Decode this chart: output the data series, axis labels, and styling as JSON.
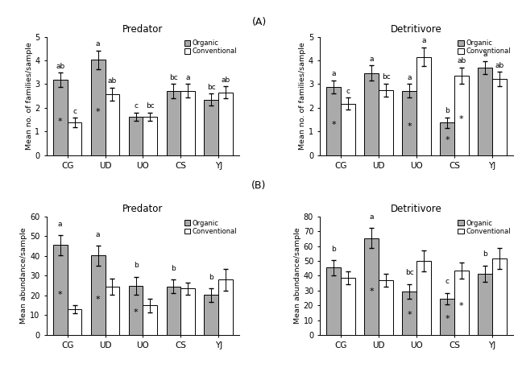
{
  "categories": [
    "CG",
    "UD",
    "UO",
    "CS",
    "YJ"
  ],
  "A_pred_organic": [
    3.18,
    4.02,
    1.62,
    2.7,
    2.35
  ],
  "A_pred_conv": [
    1.37,
    2.58,
    1.62,
    2.72,
    2.65
  ],
  "A_pred_org_err": [
    0.3,
    0.4,
    0.18,
    0.3,
    0.25
  ],
  "A_pred_conv_err": [
    0.2,
    0.28,
    0.18,
    0.28,
    0.25
  ],
  "A_pred_org_letter": [
    "ab",
    "a",
    "c",
    "bc",
    "bc"
  ],
  "A_pred_conv_letter": [
    "c",
    "ab",
    "bc",
    "a",
    "ab"
  ],
  "A_pred_org_star": [
    true,
    true,
    false,
    false,
    false
  ],
  "A_pred_conv_star": [
    false,
    false,
    false,
    false,
    false
  ],
  "A_det_organic": [
    2.88,
    3.47,
    2.72,
    1.37,
    3.7
  ],
  "A_det_conv": [
    2.18,
    2.75,
    4.15,
    3.35,
    3.22
  ],
  "A_det_org_err": [
    0.28,
    0.32,
    0.28,
    0.22,
    0.28
  ],
  "A_det_conv_err": [
    0.25,
    0.28,
    0.4,
    0.35,
    0.3
  ],
  "A_det_org_letter": [
    "a",
    "a",
    "a",
    "b",
    "a"
  ],
  "A_det_conv_letter": [
    "c",
    "bc",
    "a",
    "ab",
    "ab"
  ],
  "A_det_org_star": [
    true,
    false,
    true,
    true,
    false
  ],
  "A_det_conv_star": [
    false,
    false,
    false,
    true,
    false
  ],
  "B_pred_organic": [
    45.5,
    40.2,
    25.0,
    24.5,
    20.2
  ],
  "B_pred_conv": [
    13.0,
    24.5,
    15.0,
    23.5,
    28.0
  ],
  "B_pred_org_err": [
    5.0,
    5.0,
    4.5,
    3.5,
    3.5
  ],
  "B_pred_conv_err": [
    2.0,
    4.0,
    3.5,
    3.0,
    5.5
  ],
  "B_pred_org_letter": [
    "a",
    "a",
    "b",
    "b",
    "b"
  ],
  "B_pred_conv_letter": [
    "",
    "",
    "",
    "",
    ""
  ],
  "B_pred_org_star": [
    true,
    true,
    true,
    false,
    false
  ],
  "B_pred_conv_star": [
    false,
    false,
    false,
    false,
    false
  ],
  "B_det_organic": [
    45.5,
    65.5,
    29.5,
    24.5,
    41.5
  ],
  "B_det_conv": [
    38.5,
    37.0,
    50.0,
    43.5,
    51.5
  ],
  "B_det_org_err": [
    5.0,
    7.0,
    5.0,
    4.0,
    5.5
  ],
  "B_det_conv_err": [
    4.5,
    4.5,
    7.0,
    5.5,
    7.0
  ],
  "B_det_org_letter": [
    "b",
    "a",
    "bc",
    "c",
    "b"
  ],
  "B_det_conv_letter": [
    "",
    "",
    "",
    "",
    ""
  ],
  "B_det_org_star": [
    false,
    true,
    true,
    true,
    false
  ],
  "B_det_conv_star": [
    false,
    false,
    false,
    true,
    false
  ],
  "organic_color": "#aaaaaa",
  "conv_color": "#ffffff",
  "bar_edge": "#000000",
  "bar_width": 0.38,
  "title_A": "(A)",
  "title_B": "(B)",
  "pred_title": "Predator",
  "det_title": "Detritivore",
  "legend_organic": "Organic",
  "legend_conv": "Conventional",
  "ylabel_A": "Mean no. of families/sample",
  "ylabel_B": "Mean abundance/sample",
  "ylim_A": [
    0,
    5
  ],
  "yticks_A": [
    0,
    1,
    2,
    3,
    4,
    5
  ],
  "ylim_B_pred": [
    0,
    60
  ],
  "yticks_B_pred": [
    0,
    10,
    20,
    30,
    40,
    50,
    60
  ],
  "ylim_B_det": [
    0,
    80
  ],
  "yticks_B_det": [
    0,
    10,
    20,
    30,
    40,
    50,
    60,
    70,
    80
  ]
}
